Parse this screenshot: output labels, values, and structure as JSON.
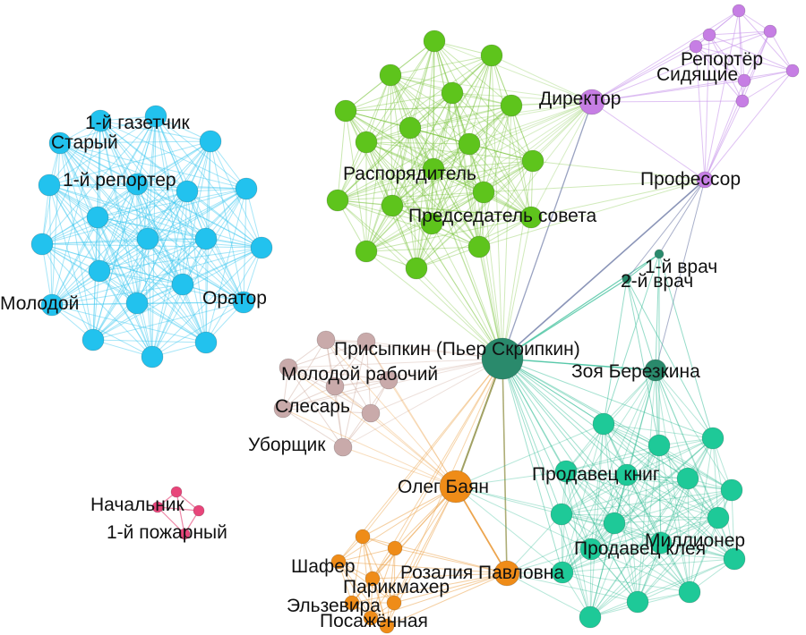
{
  "colors": {
    "blue": "#22c2ee",
    "green": "#5ec41c",
    "purple": "#c67ee4",
    "teal_dark": "#2a8a6c",
    "teal": "#1ec998",
    "rose": "#c9aaaa",
    "orange": "#ef8c18",
    "pink": "#e8457a",
    "edge_blue": "#3cc8f0",
    "edge_green": "#78c43a",
    "edge_purple": "#c590ea",
    "edge_teal": "#2dba93",
    "edge_rose": "#d2b2a6",
    "edge_orange": "#eb9f43",
    "edge_pink": "#ea6a92",
    "edge_bridge": "#6e7aa6",
    "edge_olive": "#8a8a3c"
  },
  "labels": {
    "gazetchik": "1-й газетчик",
    "stary": "Старый",
    "reporter1": "1-й репортер",
    "molodoy": "Молодой",
    "orator": "Оратор",
    "rasporyaditel": "Распорядитель",
    "predsedatel": "Председатель совета",
    "direktor": "Директор",
    "reporter": "Репортёр",
    "sidyaschie": "Сидящие",
    "professor": "Профессор",
    "vrach1": "1-й врач",
    "vrach2": "2-й врач",
    "prisypkin": "Присыпкин (Пьер Скрипкин)",
    "molodoy_rabochiy": "Молодой рабочий",
    "zoya": "Зоя Березкина",
    "slesar": "Слесарь",
    "uborschik": "Уборщик",
    "oleg": "Олег Баян",
    "prodavec_knig": "Продавец книг",
    "nachalnik": "Начальник",
    "pozharny1": "1-й пожарный",
    "millioner": "Миллионер",
    "prodavec_kleya": "Продавец клея",
    "shafer": "Шафер",
    "rozalia": "Розалия Павловна",
    "parikmaher": "Парикмахер",
    "elzevira": "Эльзевира",
    "posazhennaya": "Посажённая"
  }
}
